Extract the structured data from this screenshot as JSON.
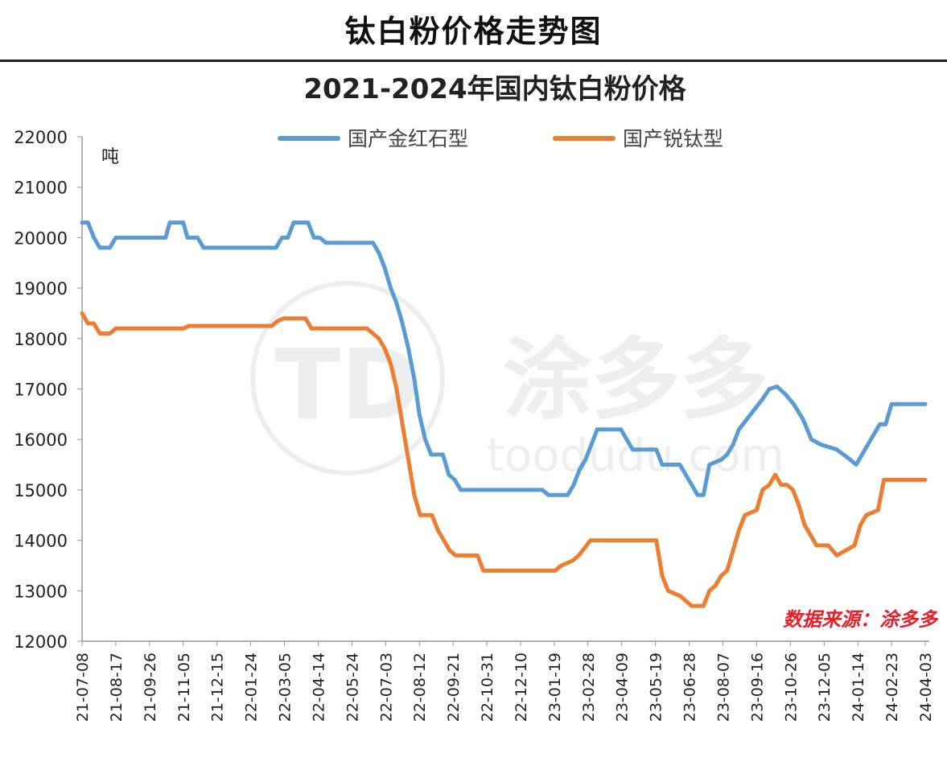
{
  "header": {
    "title": "钛白粉价格走势图"
  },
  "chart_data": {
    "type": "line",
    "title": "2021-2024年国内钛白粉价格",
    "ylabel": "吨",
    "ylim": [
      12000,
      22000
    ],
    "yticks": [
      12000,
      13000,
      14000,
      15000,
      16000,
      17000,
      18000,
      19000,
      20000,
      21000,
      22000
    ],
    "x_range": [
      "2021-07-08",
      "2024-04-03"
    ],
    "x_tick_labels": [
      "21-07-08",
      "21-08-17",
      "21-09-26",
      "21-11-05",
      "21-12-15",
      "22-01-24",
      "22-03-05",
      "22-04-14",
      "22-05-24",
      "22-07-03",
      "22-08-12",
      "22-09-21",
      "22-10-31",
      "22-12-10",
      "23-01-19",
      "23-02-28",
      "23-04-09",
      "23-05-19",
      "23-06-28",
      "23-08-07",
      "23-09-16",
      "23-10-26",
      "23-12-05",
      "24-01-14",
      "24-02-23",
      "24-04-03"
    ],
    "legend_position": "top",
    "grid": false,
    "series": [
      {
        "name": "国产金红石型",
        "color": "#5b9bd5",
        "points": [
          [
            "2021-07-08",
            20300
          ],
          [
            "2021-07-15",
            20300
          ],
          [
            "2021-07-22",
            20000
          ],
          [
            "2021-07-29",
            19800
          ],
          [
            "2021-08-10",
            19800
          ],
          [
            "2021-08-17",
            20000
          ],
          [
            "2021-10-15",
            20000
          ],
          [
            "2021-10-20",
            20300
          ],
          [
            "2021-11-05",
            20300
          ],
          [
            "2021-11-10",
            20000
          ],
          [
            "2021-11-22",
            20000
          ],
          [
            "2021-11-29",
            19800
          ],
          [
            "2022-02-23",
            19800
          ],
          [
            "2022-03-02",
            20000
          ],
          [
            "2022-03-09",
            20000
          ],
          [
            "2022-03-16",
            20300
          ],
          [
            "2022-04-02",
            20300
          ],
          [
            "2022-04-09",
            20000
          ],
          [
            "2022-04-16",
            20000
          ],
          [
            "2022-04-23",
            19900
          ],
          [
            "2022-06-18",
            19900
          ],
          [
            "2022-06-25",
            19700
          ],
          [
            "2022-07-02",
            19400
          ],
          [
            "2022-07-09",
            19000
          ],
          [
            "2022-07-16",
            18700
          ],
          [
            "2022-07-23",
            18300
          ],
          [
            "2022-07-30",
            17800
          ],
          [
            "2022-08-06",
            17200
          ],
          [
            "2022-08-12",
            16500
          ],
          [
            "2022-08-19",
            16000
          ],
          [
            "2022-08-26",
            15700
          ],
          [
            "2022-09-09",
            15700
          ],
          [
            "2022-09-16",
            15300
          ],
          [
            "2022-09-23",
            15200
          ],
          [
            "2022-09-30",
            15000
          ],
          [
            "2023-01-05",
            15000
          ],
          [
            "2023-01-12",
            14900
          ],
          [
            "2023-02-04",
            14900
          ],
          [
            "2023-02-11",
            15100
          ],
          [
            "2023-02-18",
            15400
          ],
          [
            "2023-02-25",
            15600
          ],
          [
            "2023-03-04",
            15900
          ],
          [
            "2023-03-11",
            16200
          ],
          [
            "2023-04-08",
            16200
          ],
          [
            "2023-04-15",
            16000
          ],
          [
            "2023-04-22",
            15800
          ],
          [
            "2023-05-20",
            15800
          ],
          [
            "2023-05-27",
            15500
          ],
          [
            "2023-06-17",
            15500
          ],
          [
            "2023-06-24",
            15300
          ],
          [
            "2023-07-01",
            15100
          ],
          [
            "2023-07-08",
            14900
          ],
          [
            "2023-07-15",
            14900
          ],
          [
            "2023-07-22",
            15500
          ],
          [
            "2023-08-05",
            15600
          ],
          [
            "2023-08-12",
            15700
          ],
          [
            "2023-08-19",
            15900
          ],
          [
            "2023-08-26",
            16200
          ],
          [
            "2023-09-09",
            16500
          ],
          [
            "2023-09-23",
            16800
          ],
          [
            "2023-10-01",
            17000
          ],
          [
            "2023-10-10",
            17050
          ],
          [
            "2023-10-20",
            16900
          ],
          [
            "2023-10-30",
            16700
          ],
          [
            "2023-11-10",
            16400
          ],
          [
            "2023-11-20",
            16000
          ],
          [
            "2023-12-01",
            15900
          ],
          [
            "2023-12-20",
            15800
          ],
          [
            "2024-01-05",
            15600
          ],
          [
            "2024-01-12",
            15500
          ],
          [
            "2024-01-19",
            15700
          ],
          [
            "2024-01-26",
            15900
          ],
          [
            "2024-02-02",
            16100
          ],
          [
            "2024-02-09",
            16300
          ],
          [
            "2024-02-16",
            16300
          ],
          [
            "2024-02-23",
            16700
          ],
          [
            "2024-04-03",
            16700
          ]
        ]
      },
      {
        "name": "国产锐钛型",
        "color": "#ed7d31",
        "points": [
          [
            "2021-07-08",
            18500
          ],
          [
            "2021-07-15",
            18300
          ],
          [
            "2021-07-22",
            18300
          ],
          [
            "2021-07-29",
            18100
          ],
          [
            "2021-08-10",
            18100
          ],
          [
            "2021-08-17",
            18200
          ],
          [
            "2021-11-05",
            18200
          ],
          [
            "2021-11-12",
            18250
          ],
          [
            "2022-02-18",
            18250
          ],
          [
            "2022-02-25",
            18350
          ],
          [
            "2022-03-04",
            18400
          ],
          [
            "2022-03-30",
            18400
          ],
          [
            "2022-04-06",
            18200
          ],
          [
            "2022-06-11",
            18200
          ],
          [
            "2022-06-18",
            18100
          ],
          [
            "2022-06-25",
            18000
          ],
          [
            "2022-07-02",
            17800
          ],
          [
            "2022-07-09",
            17500
          ],
          [
            "2022-07-16",
            17000
          ],
          [
            "2022-07-23",
            16300
          ],
          [
            "2022-07-30",
            15600
          ],
          [
            "2022-08-06",
            14900
          ],
          [
            "2022-08-13",
            14500
          ],
          [
            "2022-08-27",
            14500
          ],
          [
            "2022-09-03",
            14200
          ],
          [
            "2022-09-10",
            14000
          ],
          [
            "2022-09-17",
            13800
          ],
          [
            "2022-09-24",
            13700
          ],
          [
            "2022-10-20",
            13700
          ],
          [
            "2022-10-27",
            13400
          ],
          [
            "2023-01-20",
            13400
          ],
          [
            "2023-01-27",
            13500
          ],
          [
            "2023-02-10",
            13600
          ],
          [
            "2023-02-17",
            13700
          ],
          [
            "2023-03-03",
            14000
          ],
          [
            "2023-05-20",
            14000
          ],
          [
            "2023-05-27",
            13300
          ],
          [
            "2023-06-03",
            13000
          ],
          [
            "2023-06-17",
            12900
          ],
          [
            "2023-06-24",
            12800
          ],
          [
            "2023-07-01",
            12700
          ],
          [
            "2023-07-15",
            12700
          ],
          [
            "2023-07-22",
            13000
          ],
          [
            "2023-07-29",
            13100
          ],
          [
            "2023-08-05",
            13300
          ],
          [
            "2023-08-12",
            13400
          ],
          [
            "2023-08-19",
            13800
          ],
          [
            "2023-08-26",
            14200
          ],
          [
            "2023-09-02",
            14500
          ],
          [
            "2023-09-16",
            14600
          ],
          [
            "2023-09-23",
            15000
          ],
          [
            "2023-10-01",
            15100
          ],
          [
            "2023-10-08",
            15300
          ],
          [
            "2023-10-15",
            15100
          ],
          [
            "2023-10-22",
            15100
          ],
          [
            "2023-10-29",
            15000
          ],
          [
            "2023-11-05",
            14700
          ],
          [
            "2023-11-12",
            14300
          ],
          [
            "2023-11-19",
            14100
          ],
          [
            "2023-11-26",
            13900
          ],
          [
            "2023-12-10",
            13900
          ],
          [
            "2023-12-20",
            13700
          ],
          [
            "2024-01-10",
            13900
          ],
          [
            "2024-01-17",
            14300
          ],
          [
            "2024-01-24",
            14500
          ],
          [
            "2024-02-07",
            14600
          ],
          [
            "2024-02-14",
            15200
          ],
          [
            "2024-04-03",
            15200
          ]
        ]
      }
    ],
    "annotations": {
      "watermark_text": "toodudu.com",
      "source": "数据来源：涂多多"
    }
  }
}
